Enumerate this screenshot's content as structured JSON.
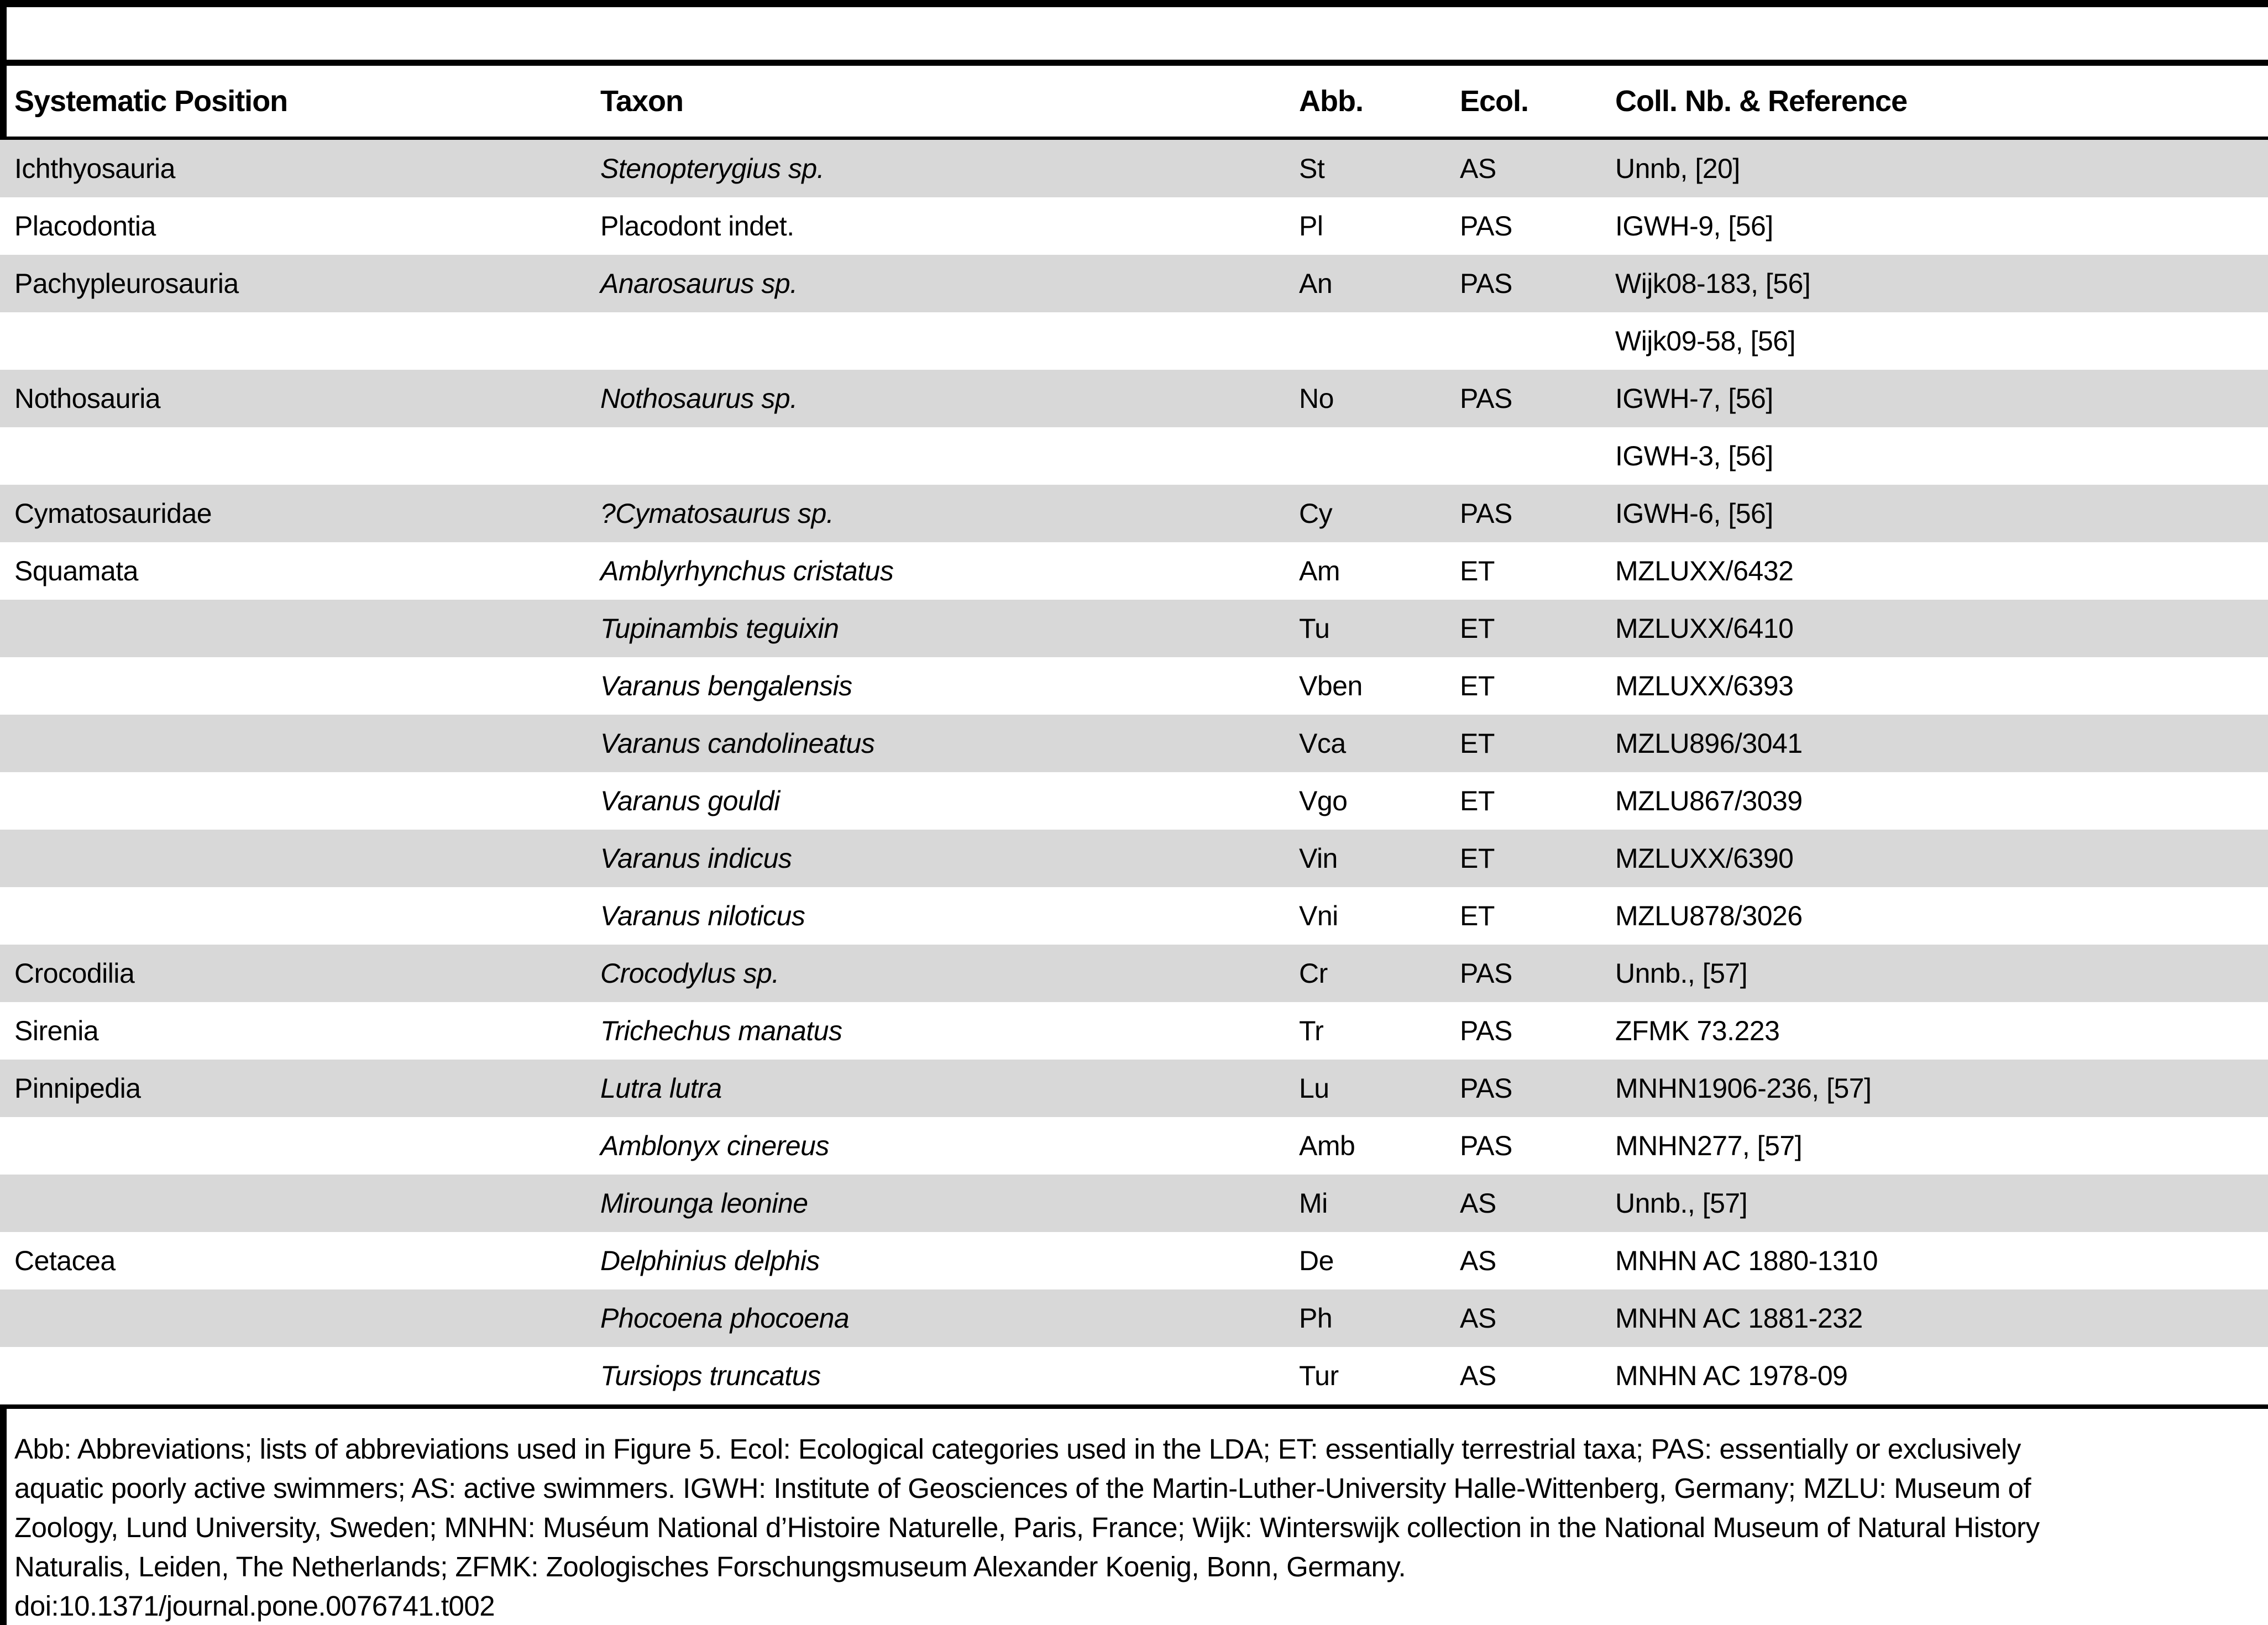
{
  "colors": {
    "row_shade": "#d8d8d8",
    "rule": "#000000",
    "background": "#ffffff"
  },
  "table": {
    "columns": [
      "Systematic Position",
      "Taxon",
      "Abb.",
      "Ecol.",
      "Coll. Nb. & Reference"
    ],
    "rows": [
      {
        "position": "Ichthyosauria",
        "taxon": "Stenopterygius sp.",
        "taxon_italic": true,
        "abb": "St",
        "ecol": "AS",
        "ref": "Unnb, [20]",
        "shaded": true
      },
      {
        "position": "Placodontia",
        "taxon": "Placodont indet.",
        "taxon_italic": false,
        "abb": "Pl",
        "ecol": "PAS",
        "ref": "IGWH-9, [56]",
        "shaded": false
      },
      {
        "position": "Pachypleurosauria",
        "taxon": "Anarosaurus sp.",
        "taxon_italic": true,
        "abb": "An",
        "ecol": "PAS",
        "ref": "Wijk08-183, [56]",
        "shaded": true
      },
      {
        "position": "",
        "taxon": "",
        "taxon_italic": false,
        "abb": "",
        "ecol": "",
        "ref": "Wijk09-58, [56]",
        "shaded": false
      },
      {
        "position": "Nothosauria",
        "taxon": "Nothosaurus sp.",
        "taxon_italic": true,
        "abb": "No",
        "ecol": "PAS",
        "ref": "IGWH-7, [56]",
        "shaded": true
      },
      {
        "position": "",
        "taxon": "",
        "taxon_italic": false,
        "abb": "",
        "ecol": "",
        "ref": "IGWH-3, [56]",
        "shaded": false
      },
      {
        "position": "Cymatosauridae",
        "taxon": "?Cymatosaurus sp.",
        "taxon_italic": true,
        "abb": "Cy",
        "ecol": "PAS",
        "ref": "IGWH-6, [56]",
        "shaded": true
      },
      {
        "position": "Squamata",
        "taxon": "Amblyrhynchus cristatus",
        "taxon_italic": true,
        "abb": "Am",
        "ecol": "ET",
        "ref": "MZLUXX/6432",
        "shaded": false
      },
      {
        "position": "",
        "taxon": "Tupinambis teguixin",
        "taxon_italic": true,
        "abb": "Tu",
        "ecol": "ET",
        "ref": "MZLUXX/6410",
        "shaded": true
      },
      {
        "position": "",
        "taxon": "Varanus bengalensis",
        "taxon_italic": true,
        "abb": "Vben",
        "ecol": "ET",
        "ref": "MZLUXX/6393",
        "shaded": false
      },
      {
        "position": "",
        "taxon": "Varanus candolineatus",
        "taxon_italic": true,
        "abb": "Vca",
        "ecol": "ET",
        "ref": "MZLU896/3041",
        "shaded": true
      },
      {
        "position": "",
        "taxon": "Varanus gouldi",
        "taxon_italic": true,
        "abb": "Vgo",
        "ecol": "ET",
        "ref": "MZLU867/3039",
        "shaded": false
      },
      {
        "position": "",
        "taxon": "Varanus indicus",
        "taxon_italic": true,
        "abb": "Vin",
        "ecol": "ET",
        "ref": "MZLUXX/6390",
        "shaded": true
      },
      {
        "position": "",
        "taxon": "Varanus niloticus",
        "taxon_italic": true,
        "abb": "Vni",
        "ecol": "ET",
        "ref": "MZLU878/3026",
        "shaded": false
      },
      {
        "position": "Crocodilia",
        "taxon": "Crocodylus sp.",
        "taxon_italic": true,
        "abb": "Cr",
        "ecol": "PAS",
        "ref": "Unnb., [57]",
        "shaded": true
      },
      {
        "position": "Sirenia",
        "taxon": "Trichechus manatus",
        "taxon_italic": true,
        "abb": "Tr",
        "ecol": "PAS",
        "ref": "ZFMK 73.223",
        "shaded": false
      },
      {
        "position": "Pinnipedia",
        "taxon": "Lutra lutra",
        "taxon_italic": true,
        "abb": "Lu",
        "ecol": "PAS",
        "ref": "MNHN1906-236, [57]",
        "shaded": true
      },
      {
        "position": "",
        "taxon": "Amblonyx cinereus",
        "taxon_italic": true,
        "abb": "Amb",
        "ecol": "PAS",
        "ref": "MNHN277, [57]",
        "shaded": false
      },
      {
        "position": "",
        "taxon": "Mirounga leonine",
        "taxon_italic": true,
        "abb": "Mi",
        "ecol": "AS",
        "ref": "Unnb., [57]",
        "shaded": true
      },
      {
        "position": "Cetacea",
        "taxon": "Delphinius delphis",
        "taxon_italic": true,
        "abb": "De",
        "ecol": "AS",
        "ref": "MNHN AC 1880-1310",
        "shaded": false
      },
      {
        "position": "",
        "taxon": "Phocoena phocoena",
        "taxon_italic": true,
        "abb": "Ph",
        "ecol": "AS",
        "ref": "MNHN AC 1881-232",
        "shaded": true
      },
      {
        "position": "",
        "taxon": "Tursiops truncatus",
        "taxon_italic": true,
        "abb": "Tur",
        "ecol": "AS",
        "ref": "MNHN AC 1978-09",
        "shaded": false
      }
    ]
  },
  "footnote": {
    "lines": [
      "Abb: Abbreviations; lists of abbreviations used in Figure 5. Ecol: Ecological categories used in the LDA; ET: essentially terrestrial taxa; PAS: essentially or exclusively",
      "aquatic poorly active swimmers; AS: active swimmers. IGWH: Institute of Geosciences of the Martin-Luther-University Halle-Wittenberg, Germany; MZLU: Museum of",
      "Zoology, Lund University, Sweden; MNHN: Muséum National d’Histoire Naturelle, Paris, France; Wijk: Winterswijk collection in the National Museum of Natural History",
      "Naturalis, Leiden, The Netherlands; ZFMK: Zoologisches Forschungsmuseum Alexander Koenig, Bonn, Germany."
    ],
    "doi": "doi:10.1371/journal.pone.0076741.t002"
  }
}
